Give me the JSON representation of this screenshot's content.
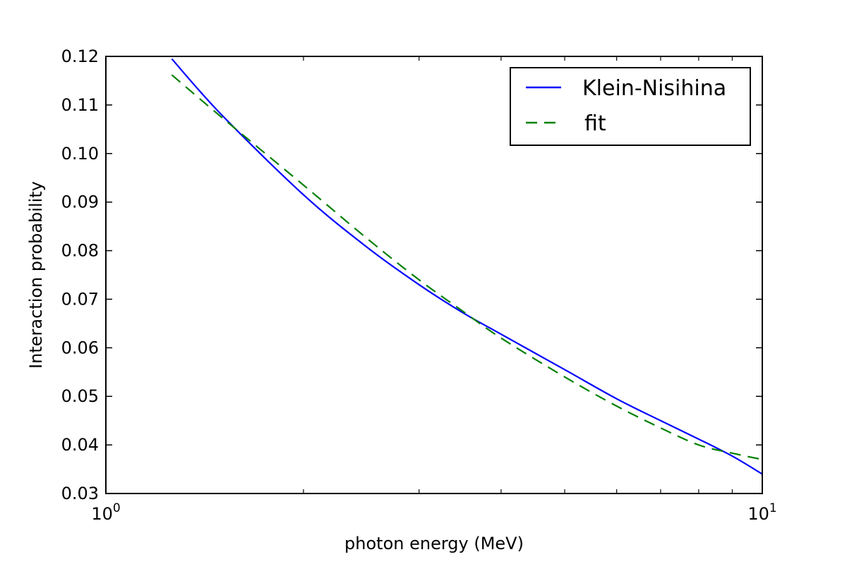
{
  "chart_data": {
    "type": "line",
    "title": "",
    "xlabel": "photon energy (MeV)",
    "ylabel": "Interaction probability",
    "xscale": "log",
    "xlim": [
      1,
      10
    ],
    "ylim": [
      0.03,
      0.12
    ],
    "x_tick_labels": [
      {
        "base": "10",
        "exp": "0",
        "value": 1
      },
      {
        "base": "10",
        "exp": "1",
        "value": 10
      }
    ],
    "x_minor_ticks": [
      2,
      3,
      4,
      5,
      6,
      7,
      8,
      9
    ],
    "y_ticks": [
      0.03,
      0.04,
      0.05,
      0.06,
      0.07,
      0.08,
      0.09,
      0.1,
      0.11,
      0.12
    ],
    "y_tick_labels": [
      "0.03",
      "0.04",
      "0.05",
      "0.06",
      "0.07",
      "0.08",
      "0.09",
      "0.10",
      "0.11",
      "0.12"
    ],
    "grid": false,
    "legend_position": "top-right",
    "series": [
      {
        "name": "Klein-Nisihina",
        "color": "#0000ff",
        "style": "solid",
        "x": [
          1.26,
          1.5,
          2.0,
          2.5,
          3.0,
          3.5,
          4.0,
          5.0,
          6.0,
          7.0,
          8.0,
          9.0,
          10.0
        ],
        "y": [
          0.1195,
          0.108,
          0.0915,
          0.0807,
          0.073,
          0.0672,
          0.0628,
          0.0555,
          0.0495,
          0.045,
          0.0412,
          0.0377,
          0.034
        ]
      },
      {
        "name": "fit",
        "color": "#008000",
        "style": "dashed",
        "x": [
          1.26,
          1.5,
          2.0,
          2.5,
          3.0,
          3.5,
          4.0,
          5.0,
          6.0,
          7.0,
          8.0,
          9.0,
          10.0
        ],
        "y": [
          0.1162,
          0.1075,
          0.0935,
          0.0825,
          0.074,
          0.0675,
          0.062,
          0.054,
          0.048,
          0.0435,
          0.04,
          0.0383,
          0.037
        ]
      }
    ]
  }
}
